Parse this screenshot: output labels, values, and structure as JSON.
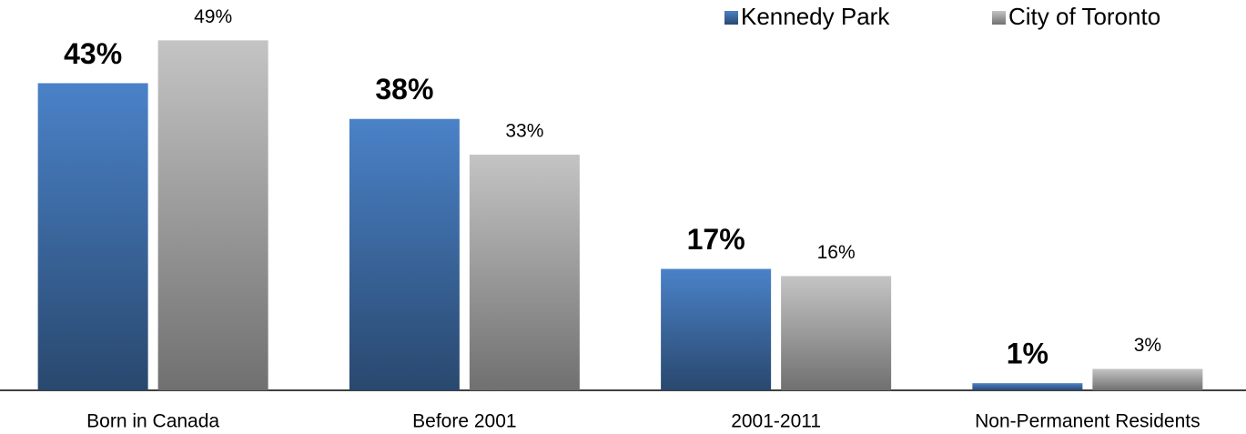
{
  "chart_data": {
    "type": "bar",
    "categories": [
      "Born in Canada",
      "Before 2001",
      "2001-2011",
      "Non-Permanent Residents"
    ],
    "series": [
      {
        "name": "Kennedy Park",
        "color": "#4a82c8",
        "values": [
          43,
          38,
          17,
          1
        ],
        "value_labels": [
          "43%",
          "38%",
          "17%",
          "1%"
        ]
      },
      {
        "name": "City of Toronto",
        "color": "#c4c4c4",
        "values": [
          49,
          33,
          16,
          3
        ],
        "value_labels": [
          "49%",
          "33%",
          "16%",
          "3%"
        ]
      }
    ],
    "legend": "top-right"
  }
}
